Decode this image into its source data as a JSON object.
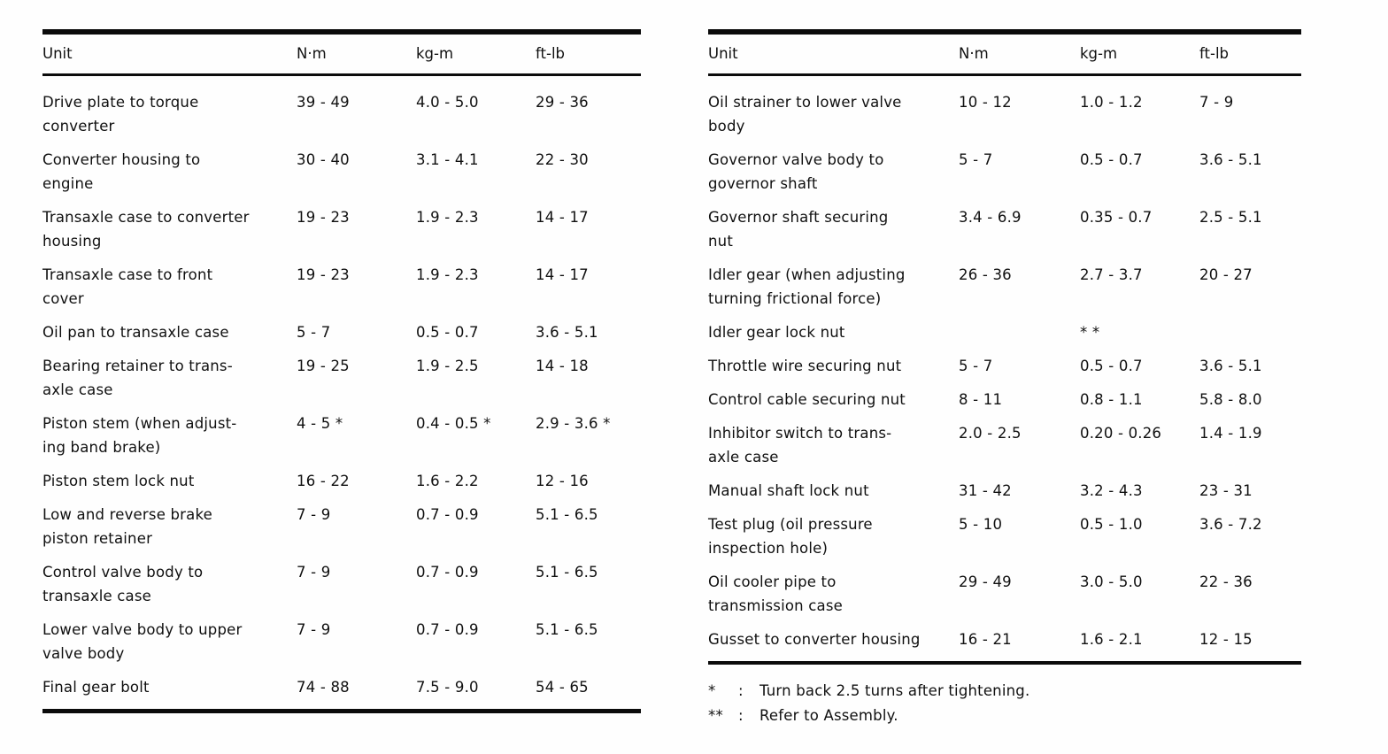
{
  "page": {
    "background": "#fefefe",
    "text_color": "#101010",
    "rule_color": "#0b0b0b"
  },
  "tables": [
    {
      "name": "torque-table-left",
      "columns": [
        "Unit",
        "N·m",
        "kg-m",
        "ft-lb"
      ],
      "rows": [
        {
          "unit": "Drive plate to torque\nconverter",
          "nm": "39 - 49",
          "kgm": "4.0 - 5.0",
          "ftlb": "29 - 36"
        },
        {
          "unit": "Converter housing to\nengine",
          "nm": "30 - 40",
          "kgm": "3.1 - 4.1",
          "ftlb": "22 - 30"
        },
        {
          "unit": "Transaxle case to converter\nhousing",
          "nm": "19 - 23",
          "kgm": "1.9 - 2.3",
          "ftlb": "14 - 17"
        },
        {
          "unit": "Transaxle case to front\ncover",
          "nm": "19 - 23",
          "kgm": "1.9 - 2.3",
          "ftlb": "14 - 17"
        },
        {
          "unit": "Oil pan to transaxle case",
          "nm": "5 - 7",
          "kgm": "0.5 - 0.7",
          "ftlb": "3.6 - 5.1"
        },
        {
          "unit": "Bearing retainer to trans-\naxle case",
          "nm": "19 - 25",
          "kgm": "1.9 - 2.5",
          "ftlb": "14 - 18"
        },
        {
          "unit": "Piston stem (when adjust-\ning band brake)",
          "nm": "4 - 5 *",
          "kgm": "0.4 - 0.5 *",
          "ftlb": "2.9 - 3.6 *"
        },
        {
          "unit": "Piston stem lock nut",
          "nm": "16 - 22",
          "kgm": "1.6 - 2.2",
          "ftlb": "12 - 16"
        },
        {
          "unit": "Low and reverse brake\npiston retainer",
          "nm": "7 - 9",
          "kgm": "0.7 - 0.9",
          "ftlb": "5.1 - 6.5"
        },
        {
          "unit": "Control valve body to\ntransaxle case",
          "nm": "7 - 9",
          "kgm": "0.7 - 0.9",
          "ftlb": "5.1 - 6.5"
        },
        {
          "unit": "Lower valve body to upper\nvalve body",
          "nm": "7 - 9",
          "kgm": "0.7 - 0.9",
          "ftlb": "5.1 - 6.5"
        },
        {
          "unit": "Final gear bolt",
          "nm": "74 - 88",
          "kgm": "7.5 - 9.0",
          "ftlb": "54 - 65"
        }
      ]
    },
    {
      "name": "torque-table-right",
      "columns": [
        "Unit",
        "N·m",
        "kg-m",
        "ft-lb"
      ],
      "rows": [
        {
          "unit": "Oil strainer to lower valve\nbody",
          "nm": "10 - 12",
          "kgm": "1.0 - 1.2",
          "ftlb": "7 - 9"
        },
        {
          "unit": "Governor valve body to\ngovernor shaft",
          "nm": "5 - 7",
          "kgm": "0.5 - 0.7",
          "ftlb": "3.6 - 5.1"
        },
        {
          "unit": "Governor shaft securing\nnut",
          "nm": "3.4 - 6.9",
          "kgm": "0.35 - 0.7",
          "ftlb": "2.5 - 5.1"
        },
        {
          "unit": "Idler gear (when adjusting\nturning frictional force)",
          "nm": "26 - 36",
          "kgm": "2.7 - 3.7",
          "ftlb": "20 - 27"
        },
        {
          "unit": "Idler gear lock nut",
          "nm": "",
          "kgm": "* *",
          "ftlb": "",
          "kgm_class": "indent"
        },
        {
          "unit": "Throttle wire securing nut",
          "nm": "5 - 7",
          "kgm": "0.5 - 0.7",
          "ftlb": "3.6 - 5.1"
        },
        {
          "unit": "Control cable securing nut",
          "nm": "8 - 11",
          "kgm": "0.8 - 1.1",
          "ftlb": "5.8 - 8.0"
        },
        {
          "unit": "Inhibitor switch to trans-\naxle case",
          "nm": "2.0 - 2.5",
          "kgm": "0.20 - 0.26",
          "ftlb": "1.4 - 1.9"
        },
        {
          "unit": "Manual shaft lock nut",
          "nm": "31 - 42",
          "kgm": "3.2 - 4.3",
          "ftlb": "23 - 31"
        },
        {
          "unit": "Test plug (oil pressure\ninspection hole)",
          "nm": "5 - 10",
          "kgm": "0.5 - 1.0",
          "ftlb": "3.6 - 7.2"
        },
        {
          "unit": "Oil cooler pipe to\ntransmission case",
          "nm": "29 - 49",
          "kgm": "3.0 - 5.0",
          "ftlb": "22 - 36"
        },
        {
          "unit": "Gusset to converter housing",
          "nm": "16 - 21",
          "kgm": "1.6 - 2.1",
          "ftlb": "12 - 15"
        }
      ]
    }
  ],
  "footnotes": [
    {
      "symbol": "*",
      "colon": ":",
      "text": "Turn back 2.5 turns after tightening."
    },
    {
      "symbol": "**",
      "colon": ":",
      "text": "Refer to Assembly."
    }
  ]
}
